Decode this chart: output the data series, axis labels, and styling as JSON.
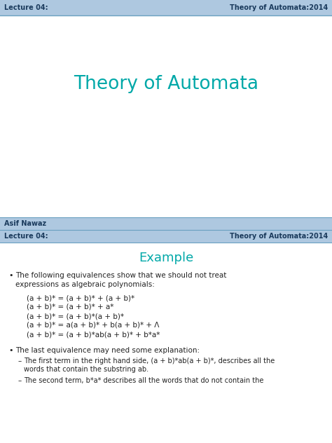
{
  "header_bg": "#aec8e0",
  "header_text_color": "#1a3a5c",
  "header_left": "Lecture 04:",
  "header_right": "Theory of Automata:2014",
  "title_main": "Theory of Automata",
  "title_main_color": "#00a8a8",
  "footer_name": "Asif Nawaz",
  "footer_lecture": "Lecture 04:",
  "footer_right": "Theory of Automata:2014",
  "footer_bg": "#aec8e0",
  "section_title": "Example",
  "section_title_color": "#00a8a8",
  "body_text_color": "#222222",
  "bg_color": "#ffffff",
  "header_line_color": "#6aa0c0",
  "bullet1_line1": "The following equivalences show that we should not treat",
  "bullet1_line2": "expressions as algebraic polynomials:",
  "equations": [
    "(a + b)* = (a + b)* + (a + b)*",
    "(a + b)* = (a + b)* + a*",
    "(a + b)* = (a + b)*(a + b)*",
    "(a + b)* = a(a + b)* + b(a + b)* + Λ",
    "(a + b)* = (a + b)*ab(a + b)* + b*a*"
  ],
  "bullet2": "The last equivalence may need some explanation:",
  "sub_bullet1_line1": "The first term in the right hand side, (a + b)*ab(a + b)*, describes all the",
  "sub_bullet1_line2": "words that contain the substring ab.",
  "sub_bullet2": "The second term, b*a* describes all the words that do not contain the"
}
